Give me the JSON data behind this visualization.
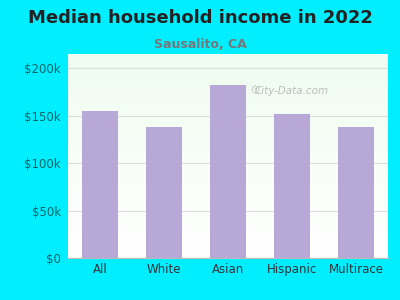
{
  "title": "Median household income in 2022",
  "subtitle": "Sausalito, CA",
  "categories": [
    "All",
    "White",
    "Asian",
    "Hispanic",
    "Multirace"
  ],
  "values": [
    155000,
    138000,
    182000,
    152000,
    138000
  ],
  "bar_color": "#b8a8d8",
  "background_color": "#00eeff",
  "plot_bg_gradient_left": "#f0f8f0",
  "plot_bg_gradient_right": "#ffffff",
  "yticks": [
    0,
    50000,
    100000,
    150000,
    200000
  ],
  "ytick_labels": [
    "$0",
    "$50k",
    "$100k",
    "$150k",
    "$200k"
  ],
  "ylim": [
    0,
    215000
  ],
  "title_fontsize": 13,
  "subtitle_fontsize": 9,
  "title_color": "#222222",
  "subtitle_color": "#777777",
  "watermark": "City-Data.com",
  "tick_color": "#006666",
  "grid_color": "#dddddd"
}
